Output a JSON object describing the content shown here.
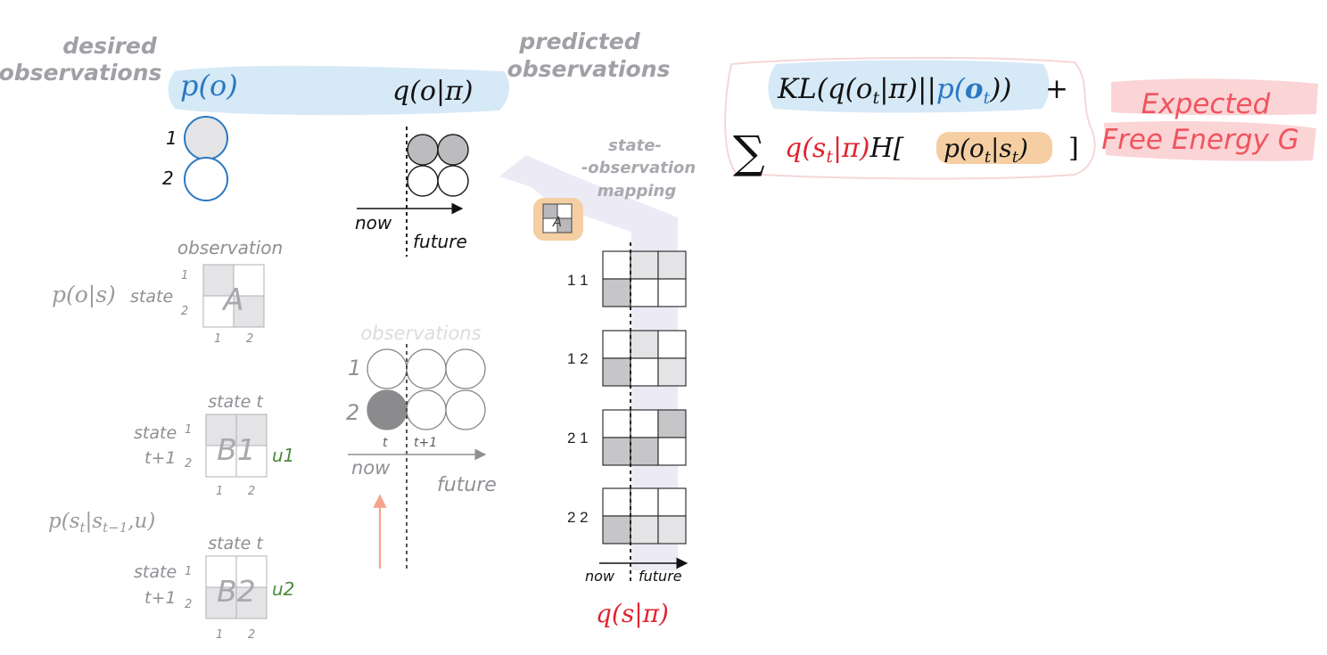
{
  "colors": {
    "blue": "#2a78c2",
    "red": "#e0242f",
    "orange_highlight": "#f5cfa3",
    "blue_highlight": "#d6e9f7",
    "pink": "#f0545f",
    "green": "#4c8a3c",
    "gray_text": "#a0a0a6",
    "cell_mid": "#c6c6c8",
    "cell_light": "#e4e4e6",
    "circle_dark": "#8b8b8e"
  },
  "top": {
    "desired_label_1": "desired",
    "desired_label_2": "observations",
    "p_o": "p(o)",
    "q_o_pi": "q(o|π)",
    "predicted_label_1": "predicted",
    "predicted_label_2": "observations",
    "pref_1": "1",
    "pref_2": "2",
    "now": "now",
    "future": "future"
  },
  "mapping": {
    "label_1": "state-",
    "label_2": "-observation",
    "label_3": "mapping",
    "icon_letter": "A"
  },
  "formula": {
    "line1_kl": "KL(q(o",
    "line1_t1": "t",
    "line1_mid": "|π)||",
    "line1_p": "p(",
    "line1_o": "o",
    "line1_t2": "t",
    "line1_close": "))",
    "line1_plus": "+",
    "sum": "∑",
    "line2_q": "q(s",
    "line2_t": "t",
    "line2_qclose": "|π)",
    "line2_h": "H[",
    "line2_p": "p(o",
    "line2_pt1": "t",
    "line2_pmid": "|s",
    "line2_pt2": "t",
    "line2_pclose": ")",
    "line2_close": "]"
  },
  "efe": {
    "line1": "Expected",
    "line2": "Free Energy G"
  },
  "a_matrix": {
    "formula": "p(o|s)",
    "state_label": "state",
    "observation_label": "observation",
    "letter": "A",
    "row_1": "1",
    "row_2": "2",
    "col_1": "1",
    "col_2": "2"
  },
  "b1_matrix": {
    "col_header": "state t",
    "row_header_1": "state",
    "row_header_2": "t+1",
    "row_1": "1",
    "row_2": "2",
    "letter": "B1",
    "action": "u1",
    "col_1": "1",
    "col_2": "2"
  },
  "transition_formula": "p(st|st−1,u)",
  "b2_matrix": {
    "col_header": "state t",
    "row_header_1": "state",
    "row_header_2": "t+1",
    "row_1": "1",
    "row_2": "2",
    "letter": "B2",
    "action": "u2",
    "col_1": "1",
    "col_2": "2"
  },
  "observations_panel": {
    "title": "observations",
    "row_1": "1",
    "row_2": "2",
    "t": "t",
    "t_plus_1": "t+1",
    "now": "now",
    "future": "future"
  },
  "policies": {
    "labels": [
      "1 1",
      "1 2",
      "2 1",
      "2 2"
    ],
    "now": "now",
    "future": "future",
    "formula": "q(s|π)"
  }
}
